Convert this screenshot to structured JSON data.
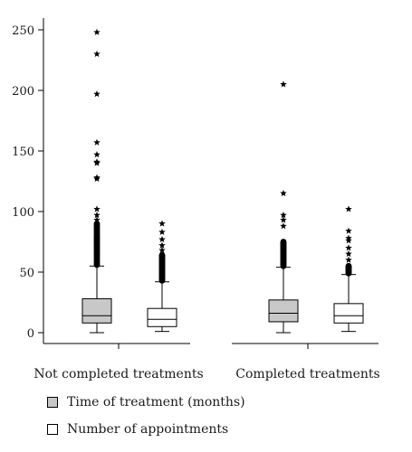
{
  "chart_data": {
    "type": "boxplot",
    "title": "",
    "xlabel": "",
    "ylabel": "",
    "ylim": [
      0,
      250
    ],
    "yticks": [
      0,
      50,
      100,
      150,
      200,
      250
    ],
    "categories": [
      "Not completed treatments",
      "Completed treatments"
    ],
    "series": [
      {
        "name": "Time of treatment (months)",
        "color": "#c8c8c8",
        "boxes": [
          {
            "min": 0,
            "q1": 8,
            "median": 14,
            "q3": 28,
            "max": 55,
            "outliers_dense_range": [
              56,
              90
            ],
            "outliers_extreme": [
              93,
              97,
              102,
              127,
              128,
              140,
              141,
              147,
              157,
              197,
              230,
              248
            ]
          },
          {
            "min": 0,
            "q1": 9,
            "median": 16,
            "q3": 27,
            "max": 54,
            "outliers_dense_range": [
              55,
              75
            ],
            "outliers_extreme": [
              88,
              93,
              97,
              115,
              205
            ]
          }
        ]
      },
      {
        "name": "Number of appointments",
        "color": "#ffffff",
        "boxes": [
          {
            "min": 1,
            "q1": 5,
            "median": 11,
            "q3": 20,
            "max": 42,
            "outliers_dense_range": [
              43,
              64
            ],
            "outliers_extreme": [
              68,
              72,
              77,
              83,
              90
            ]
          },
          {
            "min": 1,
            "q1": 8,
            "median": 14,
            "q3": 24,
            "max": 48,
            "outliers_dense_range": [
              49,
              55
            ],
            "outliers_extreme": [
              60,
              65,
              70,
              76,
              78,
              84,
              102
            ]
          }
        ]
      }
    ],
    "legend": [
      {
        "label": "Time of treatment (months)",
        "color": "#c8c8c8"
      },
      {
        "label": "Number of appointments",
        "color": "#ffffff"
      }
    ],
    "legend_position": "bottom-left"
  }
}
